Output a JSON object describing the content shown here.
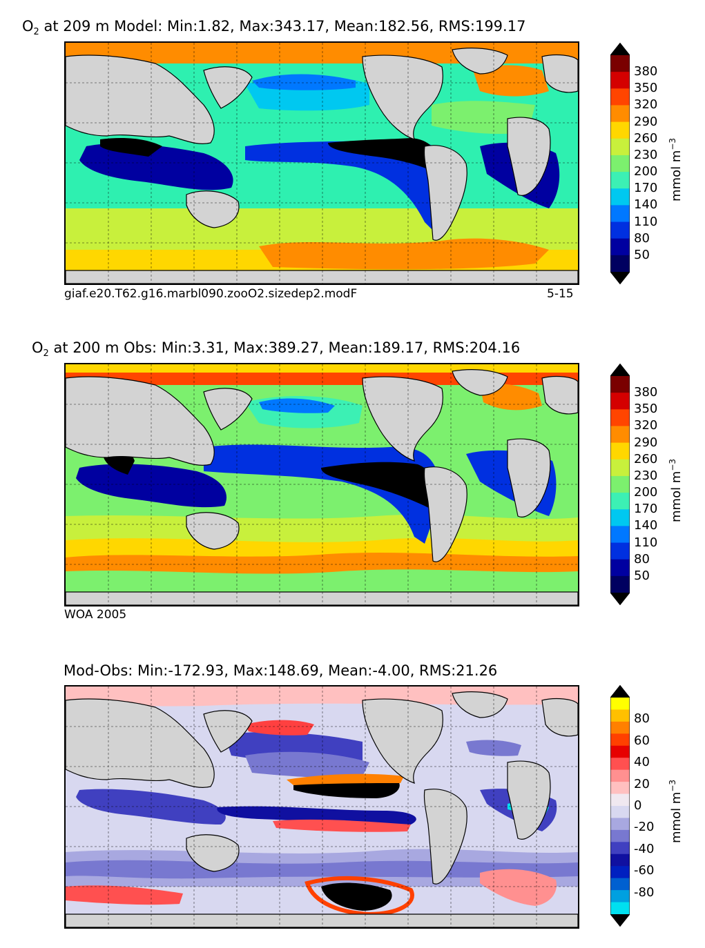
{
  "panels": [
    {
      "title_sym": "O",
      "title_sub": "2",
      "title_rest": " at 209 m Model: Min:1.82, Max:343.17, Mean:182.56, RMS:199.17",
      "footer_left": "giaf.e20.T62.g16.marbl090.zooO2.sizedep2.modF",
      "footer_right": "5-15"
    },
    {
      "title_sym": "O",
      "title_sub": "2",
      "title_rest": " at 200 m Obs: Min:3.31, Max:389.27, Mean:189.17, RMS:204.16",
      "footer_left": "WOA 2005",
      "footer_right": ""
    },
    {
      "title_sym": "",
      "title_sub": "",
      "title_rest": "Mod-Obs: Min:-172.93, Max:148.69, Mean:-4.00, RMS:21.26",
      "footer_left": "",
      "footer_right": ""
    }
  ],
  "colorbars": [
    {
      "ticks": [
        "380",
        "350",
        "320",
        "290",
        "260",
        "230",
        "200",
        "170",
        "140",
        "110",
        "80",
        "50"
      ],
      "unit": "mmol m",
      "unit_exp": "−3",
      "colors": [
        "#7a0000",
        "#d40000",
        "#ff4500",
        "#ff8c00",
        "#ffd700",
        "#c8f03c",
        "#7cf06e",
        "#3cf0b4",
        "#00c8f0",
        "#0078ff",
        "#0030e0",
        "#0000a0",
        "#000060"
      ],
      "over_color": "#000000",
      "under_color": "#000000"
    },
    {
      "ticks": [
        "380",
        "350",
        "320",
        "290",
        "260",
        "230",
        "200",
        "170",
        "140",
        "110",
        "80",
        "50"
      ],
      "unit": "mmol m",
      "unit_exp": "−3",
      "colors": [
        "#7a0000",
        "#d40000",
        "#ff4500",
        "#ff8c00",
        "#ffd700",
        "#c8f03c",
        "#7cf06e",
        "#3cf0b4",
        "#00c8f0",
        "#0078ff",
        "#0030e0",
        "#0000a0",
        "#000060"
      ],
      "over_color": "#000000",
      "under_color": "#000000"
    },
    {
      "ticks": [
        "80",
        "60",
        "40",
        "20",
        "0",
        "-20",
        "-40",
        "-60",
        "-80"
      ],
      "unit": "mmol m",
      "unit_exp": "−3",
      "colors": [
        "#ffff00",
        "#ffc000",
        "#ff8000",
        "#ff4000",
        "#e60000",
        "#ff5050",
        "#ff9090",
        "#ffc0c0",
        "#f0e8f0",
        "#d8d8f0",
        "#a8a8e0",
        "#7878d0",
        "#4040c0",
        "#1010a0",
        "#0020c0",
        "#0060d0",
        "#00a0e0",
        "#00e0f0"
      ],
      "over_color": "#000000",
      "under_color": "#000000"
    }
  ],
  "chart_data": [
    {
      "type": "heatmap",
      "title": "O2 at 209 m Model: Min:1.82, Max:343.17, Mean:182.56, RMS:199.17",
      "stats": {
        "min": 1.82,
        "max": 343.17,
        "mean": 182.56,
        "rms": 199.17
      },
      "depth_m": 209,
      "colorbar_ticks": [
        50,
        80,
        110,
        140,
        170,
        200,
        230,
        260,
        290,
        320,
        350,
        380
      ],
      "colorbar_label": "mmol m-3",
      "grid": true
    },
    {
      "type": "heatmap",
      "title": "O2 at 200 m Obs: Min:3.31, Max:389.27, Mean:189.17, RMS:204.16",
      "stats": {
        "min": 3.31,
        "max": 389.27,
        "mean": 189.17,
        "rms": 204.16
      },
      "depth_m": 200,
      "colorbar_ticks": [
        50,
        80,
        110,
        140,
        170,
        200,
        230,
        260,
        290,
        320,
        350,
        380
      ],
      "colorbar_label": "mmol m-3",
      "grid": true
    },
    {
      "type": "heatmap",
      "title": "Mod-Obs: Min:-172.93, Max:148.69, Mean:-4.00, RMS:21.26",
      "stats": {
        "min": -172.93,
        "max": 148.69,
        "mean": -4.0,
        "rms": 21.26
      },
      "colorbar_ticks": [
        -80,
        -60,
        -40,
        -20,
        0,
        20,
        40,
        60,
        80
      ],
      "colorbar_label": "mmol m-3",
      "grid": true
    }
  ]
}
